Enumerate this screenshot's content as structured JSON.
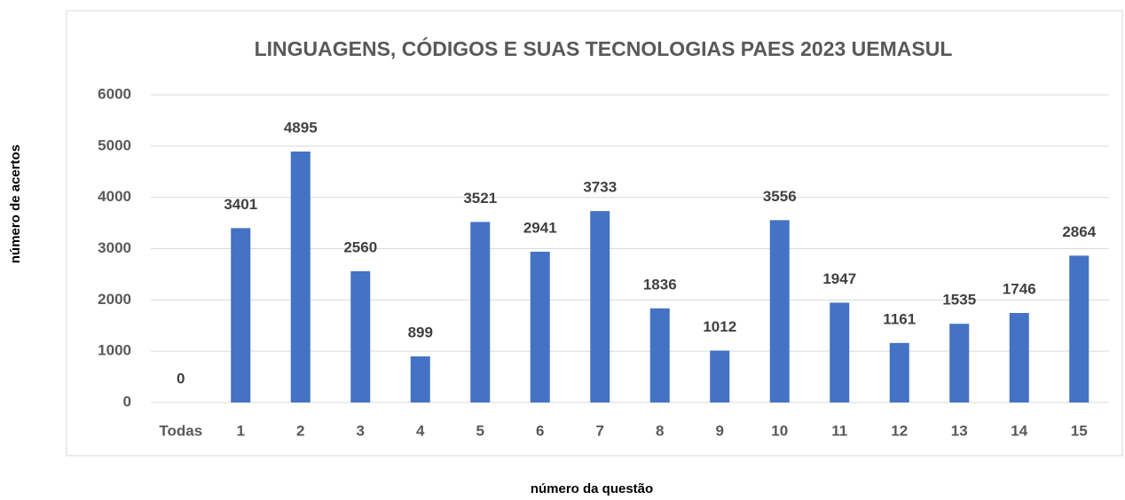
{
  "chart_data": {
    "type": "bar",
    "title": "LINGUAGENS, CÓDIGOS E SUAS TECNOLOGIAS  PAES 2023  UEMASUL",
    "x_label": "número da questão",
    "y_label": "número de acertos",
    "categories": [
      "Todas",
      "1",
      "2",
      "3",
      "4",
      "5",
      "6",
      "7",
      "8",
      "9",
      "10",
      "11",
      "12",
      "13",
      "14",
      "15"
    ],
    "values": [
      0,
      3401,
      4895,
      2560,
      899,
      3521,
      2941,
      3733,
      1836,
      1012,
      3556,
      1947,
      1161,
      1535,
      1746,
      2864
    ],
    "color": "#4472c4",
    "ylim": [
      0,
      6000
    ],
    "yticks": [
      0,
      1000,
      2000,
      3000,
      4000,
      5000,
      6000
    ],
    "grid": true
  }
}
